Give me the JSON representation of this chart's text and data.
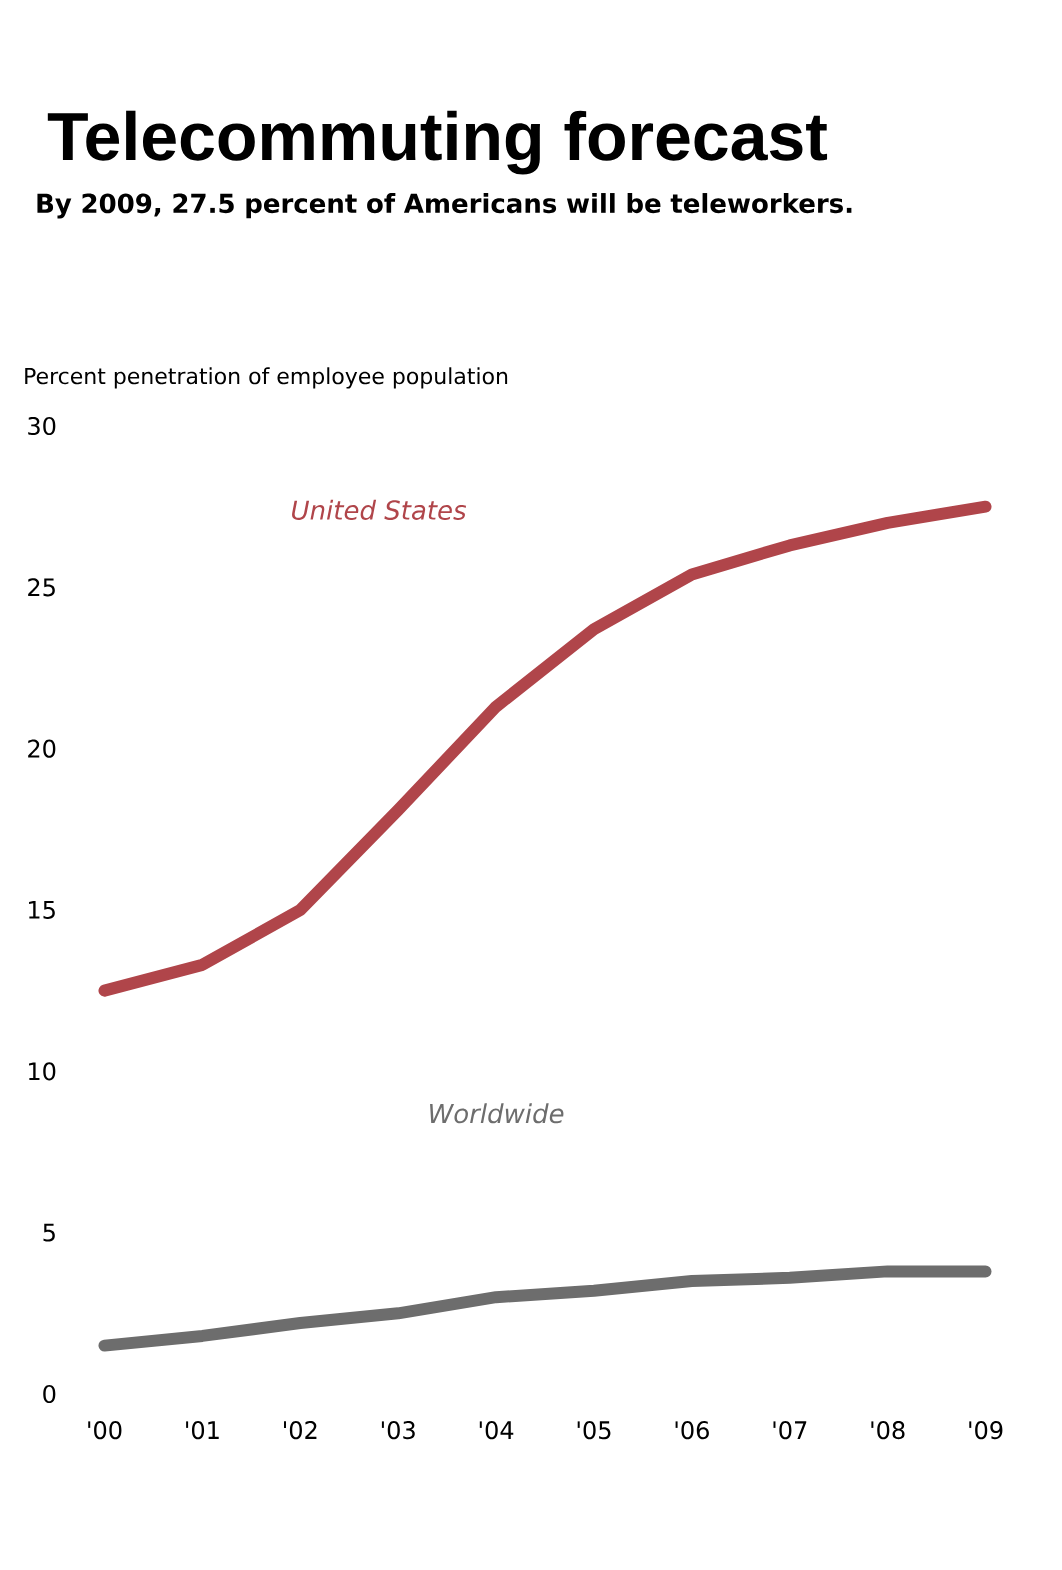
{
  "chart_data": {
    "type": "line",
    "title": "Telecommuting forecast",
    "subtitle": "By 2009, 27.5 percent of Americans will be teleworkers.",
    "ylabel": "Percent penetration of employee population",
    "categories": [
      "'00",
      "'01",
      "'02",
      "'03",
      "'04",
      "'05",
      "'06",
      "'07",
      "'08",
      "'09"
    ],
    "ylim": [
      0,
      30
    ],
    "yticks": [
      0,
      5,
      10,
      15,
      20,
      25,
      30
    ],
    "grid": false,
    "marker": "none",
    "line_style": "solid",
    "series": [
      {
        "name": "United States",
        "color": "#b0454a",
        "values": [
          12.5,
          13.3,
          15.0,
          18.1,
          21.3,
          23.7,
          25.4,
          26.3,
          27.0,
          27.5
        ]
      },
      {
        "name": "Worldwide",
        "color": "#6d6d6d",
        "values": [
          1.5,
          1.8,
          2.2,
          2.5,
          3.0,
          3.2,
          3.5,
          3.6,
          3.8,
          3.8
        ]
      }
    ]
  }
}
